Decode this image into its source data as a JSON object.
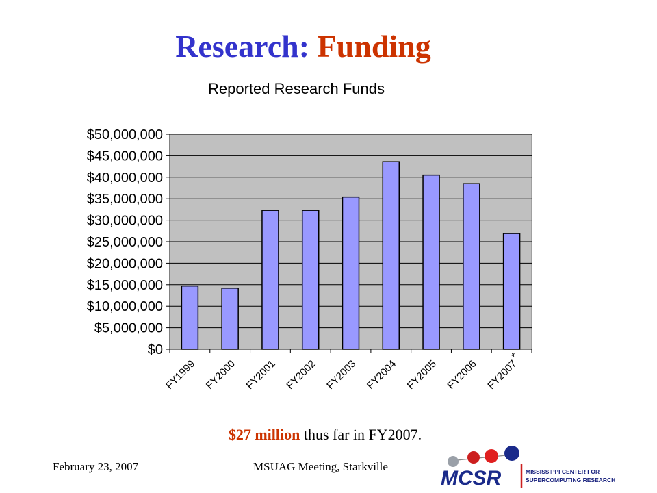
{
  "slide": {
    "title_part1": "Research:",
    "title_part2": "Funding",
    "note_strong": "$27 million",
    "note_rest": " thus far in FY2007.",
    "footer_date": "February 23, 2007",
    "footer_meeting": "MSUAG Meeting, Starkville",
    "logo_wordmark": "MCSR",
    "logo_line1": "MISSISSIPPI CENTER FOR",
    "logo_line2": "SUPERCOMPUTING RESEARCH"
  },
  "colors": {
    "title_part1": "#3333cc",
    "title_part2": "#cc3300",
    "bar_fill": "#9999ff",
    "plot_background": "#c0c0c0"
  },
  "chart_data": {
    "type": "bar",
    "title": "Reported Research Funds",
    "xlabel": "",
    "ylabel": "",
    "categories": [
      "FY1999",
      "FY2000",
      "FY2001",
      "FY2002",
      "FY2003",
      "FY2004",
      "FY2005",
      "FY2006",
      "FY2007"
    ],
    "category_footnote": "*",
    "values": [
      14700000,
      14200000,
      32300000,
      32300000,
      35400000,
      43600000,
      40500000,
      38500000,
      26900000
    ],
    "ylim": [
      0,
      50000000
    ],
    "yticks": [
      0,
      5000000,
      10000000,
      15000000,
      20000000,
      25000000,
      30000000,
      35000000,
      40000000,
      45000000,
      50000000
    ],
    "ytick_labels": [
      "$0",
      "$5,000,000",
      "$10,000,000",
      "$15,000,000",
      "$20,000,000",
      "$25,000,000",
      "$30,000,000",
      "$35,000,000",
      "$40,000,000",
      "$45,000,000",
      "$50,000,000"
    ],
    "grid": true,
    "legend": "none"
  }
}
